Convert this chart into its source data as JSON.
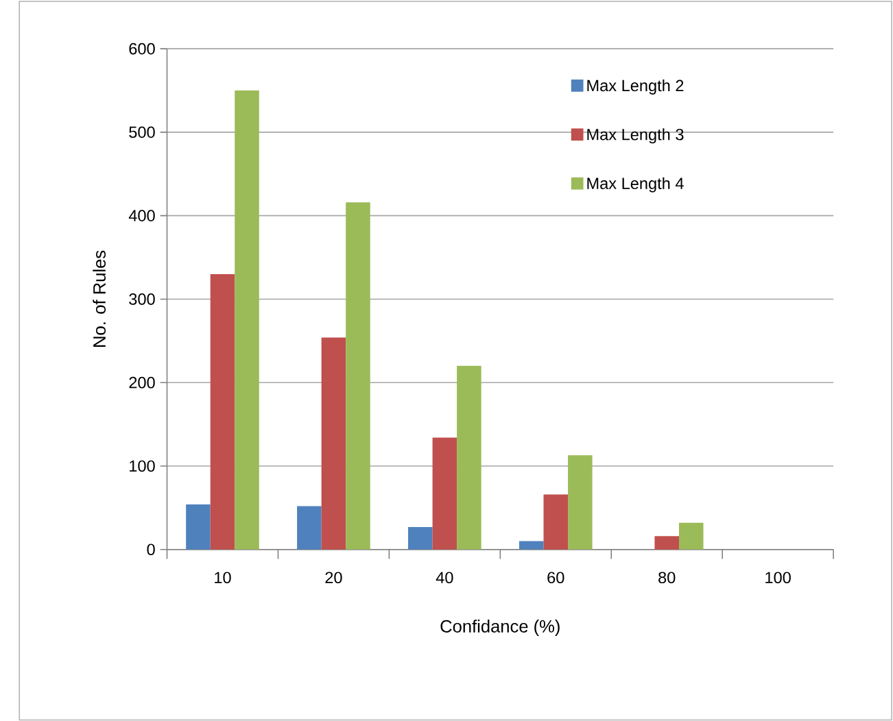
{
  "chart_data": {
    "type": "bar",
    "xlabel": "Confidance (%)",
    "ylabel": "No. of Rules",
    "categories": [
      "10",
      "20",
      "40",
      "60",
      "80",
      "100"
    ],
    "series": [
      {
        "name": "Max Length 2",
        "color": "#4f81bd",
        "values": [
          54,
          52,
          27,
          10,
          0,
          0
        ]
      },
      {
        "name": "Max Length 3",
        "color": "#c0504d",
        "values": [
          330,
          254,
          134,
          66,
          16,
          0
        ]
      },
      {
        "name": "Max Length 4",
        "color": "#9bbb59",
        "values": [
          550,
          416,
          220,
          113,
          32,
          0
        ]
      }
    ],
    "ylim": [
      0,
      600
    ],
    "yticks": [
      0,
      100,
      200,
      300,
      400,
      500,
      600
    ],
    "grid": "y",
    "legend": "top right"
  }
}
